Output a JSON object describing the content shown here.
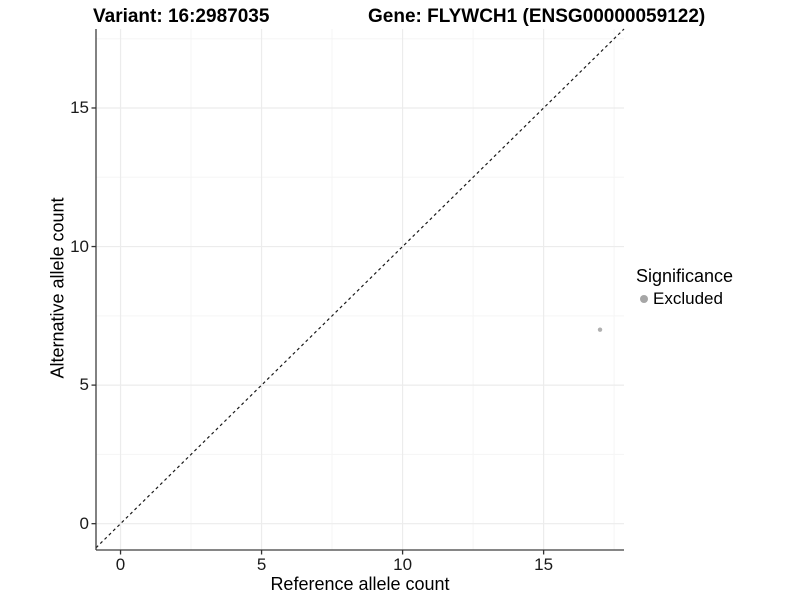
{
  "header": {
    "variant_title": "Variant: 16:2987035",
    "gene_title": "Gene: FLYWCH1 (ENSG00000059122)"
  },
  "chart_data": {
    "type": "scatter",
    "titles": [
      "Variant: 16:2987035",
      "Gene: FLYWCH1 (ENSG00000059122)"
    ],
    "xlabel": "Reference allele count",
    "ylabel": "Alternative allele count",
    "xlim": [
      -0.87,
      17.85
    ],
    "ylim": [
      -0.95,
      17.85
    ],
    "x_ticks": [
      0,
      5,
      10,
      15
    ],
    "y_ticks": [
      0,
      5,
      10,
      15
    ],
    "x_minor": [
      2.5,
      7.5,
      12.5,
      17.5
    ],
    "y_minor": [
      2.5,
      7.5,
      12.5,
      17.5
    ],
    "grid": "major+minor",
    "identity_line": {
      "style": "dashed",
      "y_equals_x": true,
      "from": -0.87,
      "to": 17.85
    },
    "series": [
      {
        "name": "Excluded",
        "color": "#b0b0b0",
        "points": [
          {
            "x": 17,
            "y": 7
          }
        ]
      }
    ],
    "legend": {
      "title": "Significance",
      "position": "right",
      "entries": [
        {
          "label": "Excluded",
          "color": "#a6a6a6",
          "marker": "circle"
        }
      ]
    }
  },
  "colors": {
    "background": "#ffffff",
    "point": "#b0b0b0",
    "legend_marker": "#a6a6a6",
    "axis_line": "#3f3f3f",
    "tick_mark": "#333333",
    "grid_major": "#ececec",
    "grid_minor": "#f5f5f5",
    "identity_line": "#1a1a1a",
    "text": "#000000"
  }
}
